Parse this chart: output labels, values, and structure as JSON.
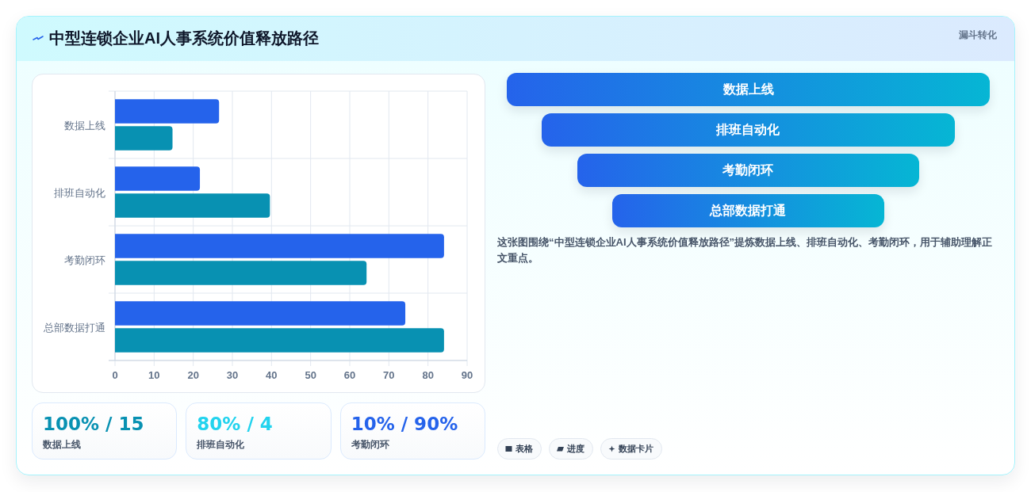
{
  "chart_data": [
    {
      "type": "bar",
      "title": "中型连锁企业AI人事系统价值释放路径",
      "orientation": "horizontal",
      "categories": [
        "数据上线",
        "排班自动化",
        "考勤闭环",
        "总部数据打通"
      ],
      "series": [
        {
          "color": "#2563eb",
          "values": [
            26.6,
            21.7,
            84.1,
            74.2
          ]
        },
        {
          "color": "#0891b2",
          "values": [
            14.7,
            39.6,
            64.3,
            84.1
          ]
        }
      ],
      "xlim": [
        0,
        90
      ],
      "xticks": [
        0,
        10,
        20,
        30,
        40,
        50,
        60,
        70,
        80,
        90
      ],
      "grid": true
    },
    {
      "type": "other",
      "title": "漏斗转化",
      "categories": [
        "数据上线",
        "排班自动化",
        "考勤闭环",
        "总部数据打通"
      ],
      "annotations": [
        "这张图围绕“中型连锁企业AI人事系统价值释放路径”提炼数据上线、排班自动化、考勤闭环，用于辅助理解正文重点。",
        "表格",
        "进度",
        "数据卡片"
      ]
    },
    {
      "type": "other",
      "categories": [
        "数据上线",
        "排班自动化",
        "考勤闭环"
      ],
      "value_labels": [
        "100% / 15",
        "80% / 4",
        "10% / 90%"
      ]
    }
  ]
}
